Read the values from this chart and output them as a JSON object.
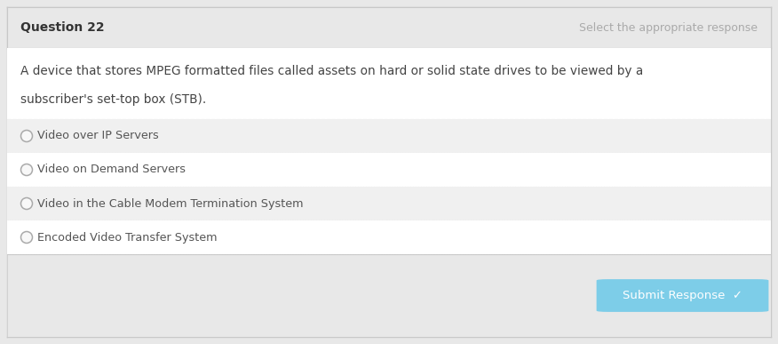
{
  "question_number": "Question 22",
  "instruction": "Select the appropriate response",
  "question_text_line1": "A device that stores MPEG formatted files called assets on hard or solid state drives to be viewed by a",
  "question_text_line2": "subscriber's set-top box (STB).",
  "options": [
    "Video over IP Servers",
    "Video on Demand Servers",
    "Video in the Cable Modem Termination System",
    "Encoded Video Transfer System"
  ],
  "submit_button_text": "Submit Response  ✓",
  "outer_bg": "#e8e8e8",
  "header_bg": "#e8e8e8",
  "content_bg": "#ffffff",
  "option_odd_bg": "#f0f0f0",
  "option_even_bg": "#ffffff",
  "footer_bg": "#e8e8e8",
  "border_color": "#c8c8c8",
  "dashed_color": "#cccccc",
  "header_text_color": "#333333",
  "instruction_color": "#aaaaaa",
  "question_text_color": "#444444",
  "option_text_color": "#555555",
  "submit_bg": "#7dcde8",
  "submit_text_color": "#ffffff",
  "radio_edge_color": "#aaaaaa",
  "radio_face_color": "#f8f8f8",
  "fig_w": 8.76,
  "fig_h": 3.87,
  "dpi": 100
}
